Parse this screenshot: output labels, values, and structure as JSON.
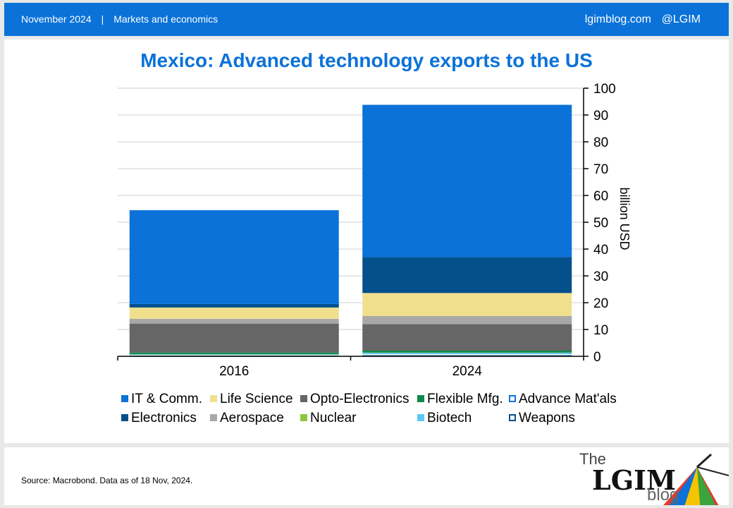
{
  "header": {
    "date": "November 2024",
    "separator": "|",
    "section": "Markets and economics",
    "site": "lgimblog.com",
    "handle": "@LGIM"
  },
  "footer": {
    "source": "Source: Macrobond. Data as of 18 Nov, 2024."
  },
  "logo": {
    "the": "The",
    "lgim": "LGIM",
    "blog": "blog"
  },
  "chart_data": {
    "type": "bar",
    "stacked": true,
    "title": "Mexico: Advanced technology exports to the US",
    "ylabel": "billion USD",
    "ylim": [
      0,
      100
    ],
    "yticks": [
      0,
      10,
      20,
      30,
      40,
      50,
      60,
      70,
      80,
      90,
      100
    ],
    "y_axis_side": "right",
    "grid": true,
    "legend_position": "bottom",
    "categories": [
      "2016",
      "2024"
    ],
    "series": [
      {
        "name": "Weapons",
        "values": [
          0.3,
          0.4
        ],
        "color": "#0a4f8a",
        "legend_style": "outline"
      },
      {
        "name": "Advance Mat'als",
        "values": [
          0.2,
          0.4
        ],
        "color": "#ffffff",
        "legend_style": "outline"
      },
      {
        "name": "Biotech",
        "values": [
          0.2,
          0.5
        ],
        "color": "#5bc8f5"
      },
      {
        "name": "Nuclear",
        "values": [
          0.1,
          0.1
        ],
        "color": "#8dc63f"
      },
      {
        "name": "Flexible Mfg.",
        "values": [
          0.6,
          0.7
        ],
        "color": "#0d8a4a"
      },
      {
        "name": "Opto-Electronics",
        "values": [
          10.8,
          9.9
        ],
        "color": "#666666"
      },
      {
        "name": "Aerospace",
        "values": [
          1.8,
          3.0
        ],
        "color": "#a8a8a8"
      },
      {
        "name": "Life Science",
        "values": [
          4.2,
          8.6
        ],
        "color": "#f0e08e"
      },
      {
        "name": "Electronics",
        "values": [
          1.3,
          13.4
        ],
        "color": "#03508c"
      },
      {
        "name": "IT & Comm.",
        "values": [
          35.0,
          56.8
        ],
        "color": "#0a72d8"
      }
    ],
    "legend": [
      {
        "name": "IT & Comm.",
        "color": "#0a72d8",
        "style": "fill"
      },
      {
        "name": "Life Science",
        "color": "#f0e08e",
        "style": "fill"
      },
      {
        "name": "Opto-Electronics",
        "color": "#666666",
        "style": "fill"
      },
      {
        "name": "Flexible Mfg.",
        "color": "#0d8a4a",
        "style": "fill"
      },
      {
        "name": "Advance Mat'als",
        "color": "#0a72d8",
        "style": "outline"
      },
      {
        "name": "Electronics",
        "color": "#03508c",
        "style": "fill"
      },
      {
        "name": "Aerospace",
        "color": "#a8a8a8",
        "style": "fill"
      },
      {
        "name": "Nuclear",
        "color": "#8dc63f",
        "style": "fill"
      },
      {
        "name": "Biotech",
        "color": "#5bc8f5",
        "style": "fill"
      },
      {
        "name": "Weapons",
        "color": "#0a4f8a",
        "style": "outline"
      }
    ]
  }
}
